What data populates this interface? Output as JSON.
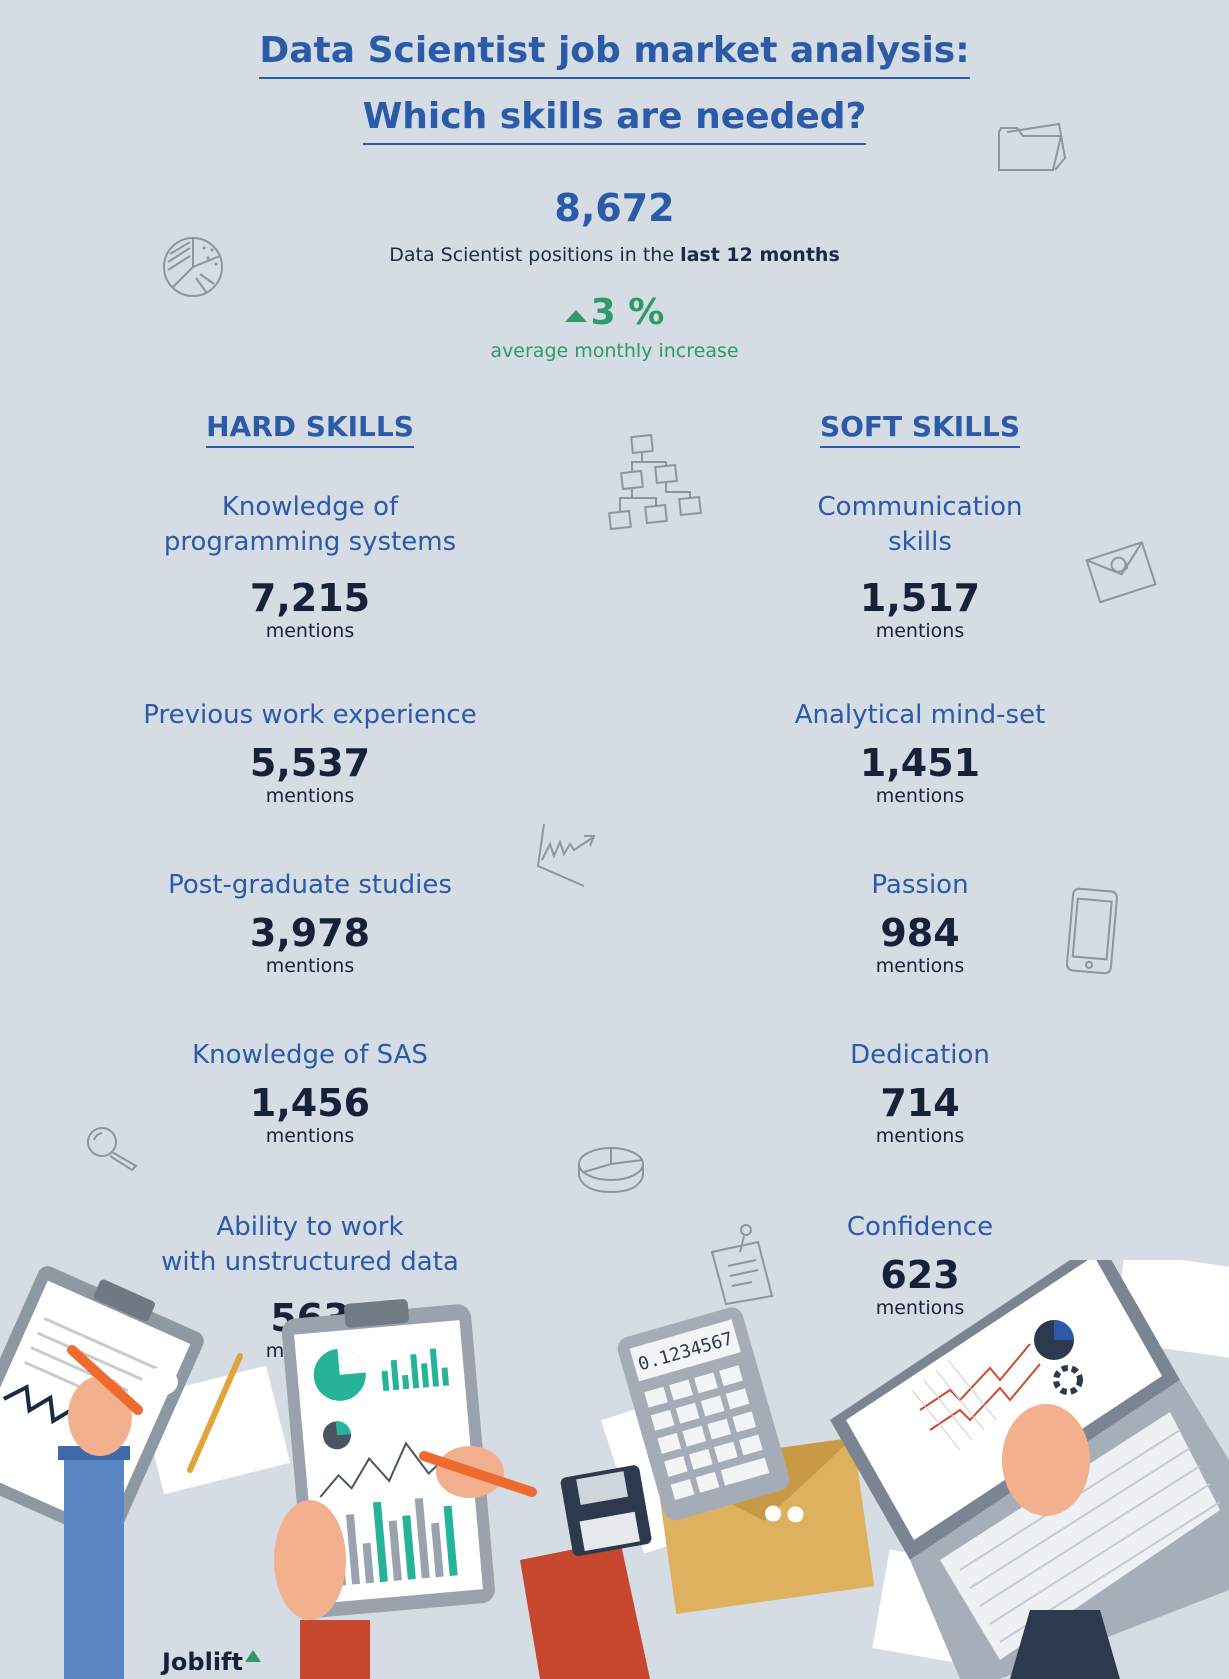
{
  "title": {
    "line1": "Data Scientist job market analysis:",
    "line2": "Which skills are needed?"
  },
  "positions": {
    "count": "8,672",
    "caption_prefix": "Data Scientist positions in the ",
    "caption_bold": "last 12 months"
  },
  "growth": {
    "value": "3 %",
    "caption": "average monthly increase"
  },
  "hard_skills": {
    "heading": "HARD SKILLS",
    "items": [
      {
        "name_line1": "Knowledge of",
        "name_line2": "programming systems",
        "count": "7,215",
        "unit": "mentions"
      },
      {
        "name_line1": "Previous work experience",
        "name_line2": "",
        "count": "5,537",
        "unit": "mentions"
      },
      {
        "name_line1": "Post-graduate studies",
        "name_line2": "",
        "count": "3,978",
        "unit": "mentions"
      },
      {
        "name_line1": "Knowledge of SAS",
        "name_line2": "",
        "count": "1,456",
        "unit": "mentions"
      },
      {
        "name_line1": "Ability to work",
        "name_line2": "with unstructured data",
        "count": "563",
        "unit": "mentions"
      }
    ]
  },
  "soft_skills": {
    "heading": "SOFT SKILLS",
    "items": [
      {
        "name_line1": "Communication",
        "name_line2": "skills",
        "count": "1,517",
        "unit": "mentions"
      },
      {
        "name_line1": "Analytical mind-set",
        "name_line2": "",
        "count": "1,451",
        "unit": "mentions"
      },
      {
        "name_line1": "Passion",
        "name_line2": "",
        "count": "984",
        "unit": "mentions"
      },
      {
        "name_line1": "Dedication",
        "name_line2": "",
        "count": "714",
        "unit": "mentions"
      },
      {
        "name_line1": "Confidence",
        "name_line2": "",
        "count": "623",
        "unit": "mentions"
      }
    ]
  },
  "calculator_display": "0.1234567",
  "brand": {
    "logo": "Joblift"
  },
  "colors": {
    "background": "#d6dce3",
    "title_blue": "#2a5aa8",
    "growth_green": "#2e9a6a",
    "number_dark": "#16223a"
  },
  "icons": [
    "folder-icon",
    "pie-chart-icon",
    "org-chart-icon",
    "email-icon",
    "trend-chart-icon",
    "smartphone-icon",
    "magnifier-icon",
    "pie-3d-icon",
    "pinned-note-icon"
  ]
}
